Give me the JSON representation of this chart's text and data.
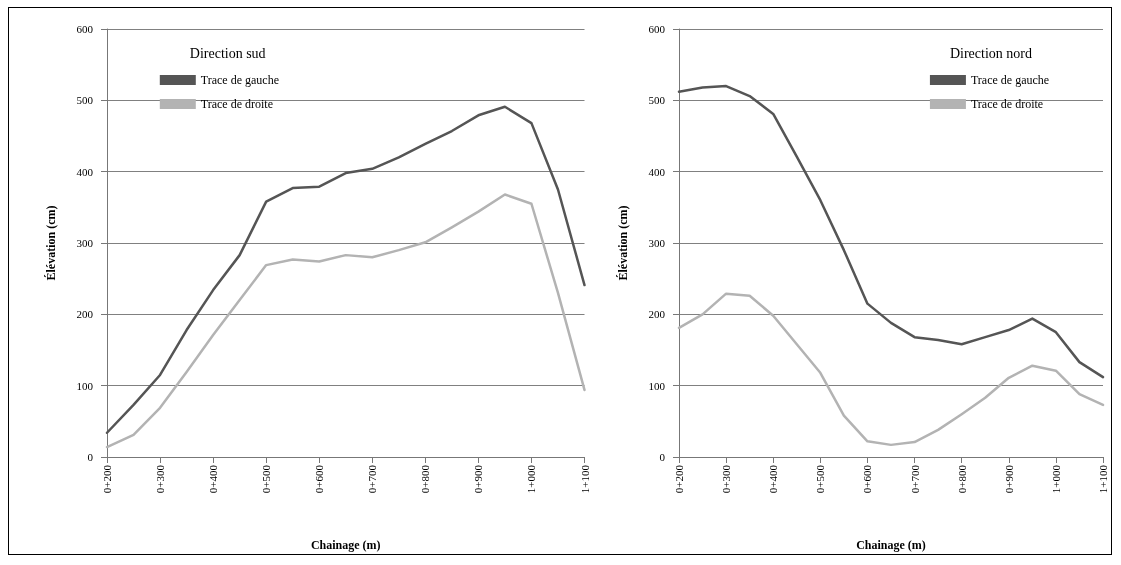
{
  "chart_data": [
    {
      "type": "line",
      "title": "Direction sud",
      "xlabel": "Chainage (m)",
      "ylabel": "Élévation (cm)",
      "categories": [
        "0+200",
        null,
        "0+300",
        null,
        "0+400",
        null,
        "0+500",
        null,
        "0+600",
        null,
        "0+700",
        null,
        "0+800",
        null,
        "0+900",
        null,
        "1+000",
        null,
        "1+100"
      ],
      "series": [
        {
          "name": "Trace de gauche",
          "color": "#555555",
          "values": [
            34,
            73,
            115,
            178,
            234,
            283,
            358,
            377,
            379,
            398,
            404,
            420,
            439,
            457,
            479,
            491,
            468,
            375,
            241
          ]
        },
        {
          "name": "Trace de droite",
          "color": "#b3b3b3",
          "values": [
            14,
            31,
            69,
            119,
            171,
            220,
            269,
            277,
            274,
            283,
            280,
            290,
            301,
            322,
            344,
            368,
            355,
            230,
            94
          ]
        }
      ],
      "ylim": [
        0,
        600
      ],
      "yticks": [
        0,
        100,
        200,
        300,
        400,
        500,
        600
      ],
      "grid": "y",
      "legend": "top left"
    },
    {
      "type": "line",
      "title": "Direction nord",
      "xlabel": "Chainage (m)",
      "ylabel": "Élévation (cm)",
      "categories": [
        "0+200",
        null,
        "0+300",
        null,
        "0+400",
        null,
        "0+500",
        null,
        "0+600",
        null,
        "0+700",
        null,
        "0+800",
        null,
        "0+900",
        null,
        "1+000",
        null,
        "1+100"
      ],
      "series": [
        {
          "name": "Trace de gauche",
          "color": "#555555",
          "values": [
            512,
            518,
            520,
            506,
            481,
            421,
            360,
            290,
            215,
            188,
            168,
            164,
            158,
            168,
            178,
            194,
            175,
            133,
            112
          ]
        },
        {
          "name": "Trace de droite",
          "color": "#b3b3b3",
          "values": [
            181,
            200,
            229,
            226,
            198,
            158,
            118,
            58,
            22,
            17,
            21,
            38,
            60,
            83,
            111,
            128,
            121,
            88,
            73
          ]
        }
      ],
      "ylim": [
        0,
        600
      ],
      "yticks": [
        0,
        100,
        200,
        300,
        400,
        500,
        600
      ],
      "grid": "y",
      "legend": "top right"
    }
  ]
}
